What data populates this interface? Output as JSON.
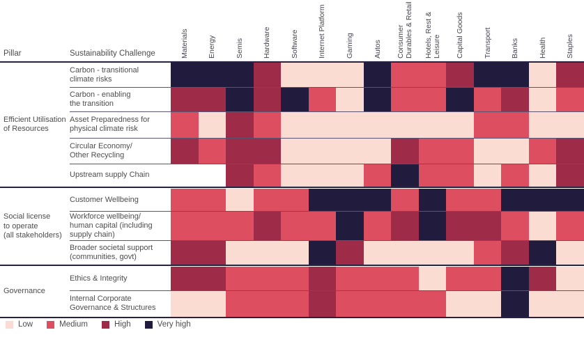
{
  "header": {
    "pillar_column_label": "Pillar",
    "challenge_column_label": "Sustainability Challenge"
  },
  "legend": {
    "items": [
      {
        "label": "Low",
        "color": "#fbdcd3"
      },
      {
        "label": "Medium",
        "color": "#dd4e60"
      },
      {
        "label": "High",
        "color": "#9e2c49"
      },
      {
        "label": "Very high",
        "color": "#211c3d"
      }
    ]
  },
  "chart_data": {
    "type": "heatmap",
    "title": "",
    "columns": [
      "Materials",
      "Energy",
      "Semis",
      "Hardware",
      "Software",
      "Internet Platform",
      "Gaming",
      "Autos",
      "Consumer\nDurables & Retail",
      "Hotels, Rest &\nLeisure",
      "Capital Goods",
      "Transport",
      "Banks",
      "Health",
      "Staples"
    ],
    "value_scale": [
      "Low",
      "Medium",
      "High",
      "Very high"
    ],
    "level_codes": {
      "L": "Low",
      "M": "Medium",
      "H": "High",
      "V": "Very high",
      "": "blank"
    },
    "colors": {
      "L": "#fbdcd3",
      "M": "#dd4e60",
      "H": "#9e2c49",
      "V": "#211c3d",
      "": "#ffffff"
    },
    "pillars": [
      {
        "name": "Efficient Utilisation\nof Resources",
        "challenges": [
          {
            "label": "Carbon - transitional\nclimate risks",
            "values": [
              "V",
              "V",
              "V",
              "H",
              "L",
              "L",
              "L",
              "V",
              "M",
              "M",
              "H",
              "V",
              "V",
              "L",
              "H"
            ]
          },
          {
            "label": "Carbon - enabling\nthe transition",
            "values": [
              "H",
              "H",
              "V",
              "H",
              "V",
              "M",
              "L",
              "V",
              "M",
              "M",
              "V",
              "M",
              "H",
              "L",
              "M"
            ]
          },
          {
            "label": "Asset Preparedness for\nphysical climate risk",
            "values": [
              "M",
              "L",
              "H",
              "M",
              "L",
              "L",
              "L",
              "L",
              "L",
              "L",
              "L",
              "M",
              "M",
              "L",
              "L"
            ]
          },
          {
            "label": "Circular Economy/\nOther Recycling",
            "values": [
              "H",
              "M",
              "H",
              "H",
              "L",
              "L",
              "L",
              "L",
              "H",
              "M",
              "M",
              "L",
              "L",
              "M",
              "H"
            ]
          },
          {
            "label": "Upstream supply Chain",
            "values": [
              "",
              "",
              "H",
              "M",
              "L",
              "L",
              "L",
              "M",
              "V",
              "M",
              "M",
              "L",
              "M",
              "L",
              "H"
            ]
          }
        ]
      },
      {
        "name": "Social license\nto operate\n(all stakeholders)",
        "challenges": [
          {
            "label": "Customer Wellbeing",
            "values": [
              "M",
              "M",
              "L",
              "M",
              "M",
              "V",
              "V",
              "V",
              "M",
              "V",
              "M",
              "M",
              "V",
              "V",
              "V"
            ]
          },
          {
            "label": "Workforce wellbeing/\nhuman capital (including\nsupply chain)",
            "values": [
              "M",
              "M",
              "M",
              "H",
              "M",
              "M",
              "V",
              "M",
              "H",
              "V",
              "H",
              "H",
              "M",
              "L",
              "M"
            ]
          },
          {
            "label": "Broader societal support\n(communities, govt)",
            "values": [
              "H",
              "H",
              "L",
              "L",
              "L",
              "V",
              "H",
              "L",
              "L",
              "L",
              "L",
              "M",
              "H",
              "V",
              "L"
            ]
          }
        ]
      },
      {
        "name": "Governance",
        "challenges": [
          {
            "label": "Ethics & Integrity",
            "values": [
              "H",
              "H",
              "M",
              "M",
              "M",
              "H",
              "M",
              "M",
              "M",
              "L",
              "M",
              "M",
              "V",
              "H",
              "L"
            ]
          },
          {
            "label": "Internal Corporate\nGovernance & Structures",
            "values": [
              "L",
              "L",
              "M",
              "M",
              "M",
              "H",
              "M",
              "M",
              "M",
              "M",
              "L",
              "L",
              "V",
              "L",
              "L"
            ]
          }
        ]
      }
    ]
  }
}
